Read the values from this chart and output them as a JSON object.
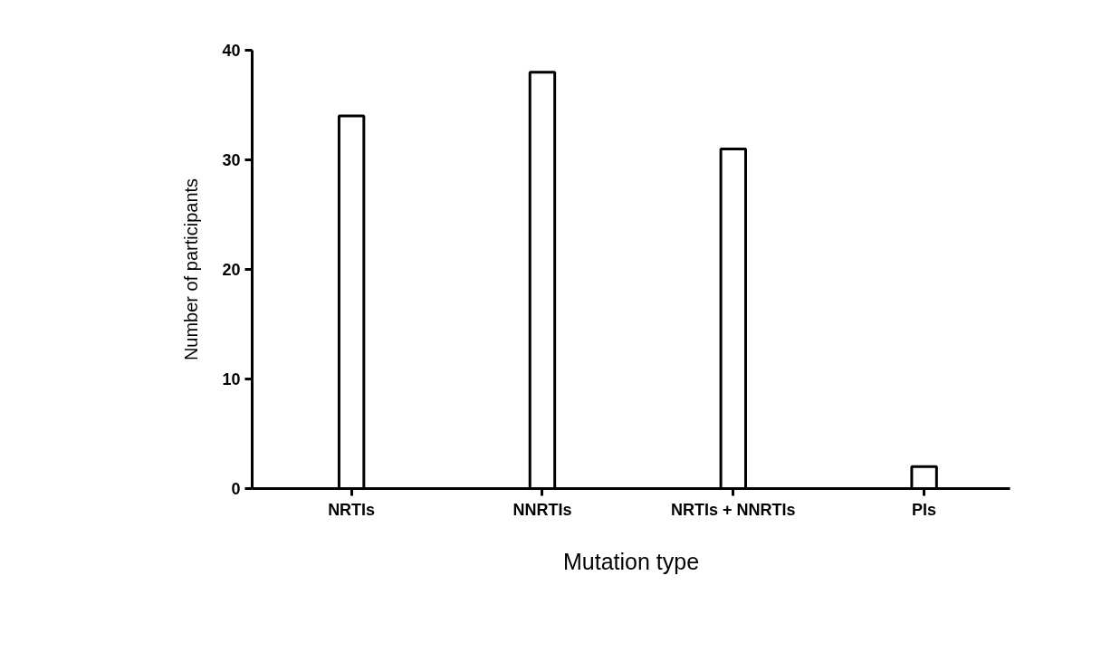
{
  "chart_data": {
    "type": "bar",
    "xlabel": "Mutation type",
    "ylabel": "Number of participants",
    "categories": [
      "NRTIs",
      "NNRTIs",
      "NRTIs + NNRTIs",
      "PIs"
    ],
    "values": [
      34,
      38,
      31,
      2
    ],
    "color": "#ffffff",
    "ylim": [
      0,
      40
    ],
    "yticks": [
      0,
      10,
      20,
      30,
      40
    ],
    "grid": false
  }
}
